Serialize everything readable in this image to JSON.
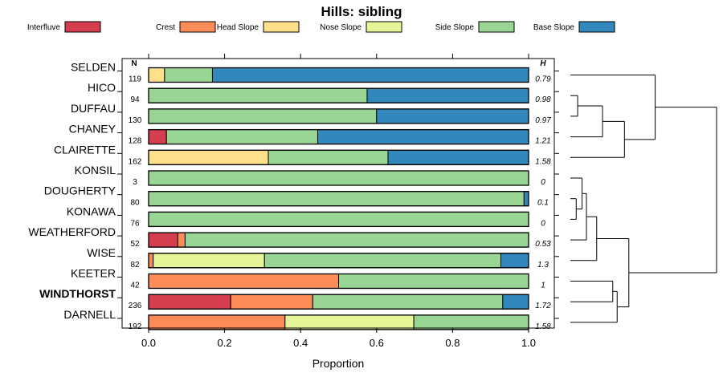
{
  "chart_data": {
    "type": "bar",
    "stacked": true,
    "orientation": "horizontal",
    "title": "Hills: sibling",
    "xlabel": "Proportion",
    "ylabel": "",
    "xlim": [
      0,
      1
    ],
    "x_ticks": [
      "0.0",
      "0.2",
      "0.4",
      "0.6",
      "0.8",
      "1.0"
    ],
    "n_header": "N",
    "h_header": "H",
    "legend": [
      {
        "name": "Interfluve",
        "color": "#d53e4f"
      },
      {
        "name": "Crest",
        "color": "#fc8d59"
      },
      {
        "name": "Head Slope",
        "color": "#fee08b"
      },
      {
        "name": "Nose Slope",
        "color": "#e6f598"
      },
      {
        "name": "Side Slope",
        "color": "#99d594"
      },
      {
        "name": "Base Slope",
        "color": "#3288bd"
      }
    ],
    "categories": [
      "SELDEN",
      "HICO",
      "DUFFAU",
      "CHANEY",
      "CLAIRETTE",
      "KONSIL",
      "DOUGHERTY",
      "KONAWA",
      "WEATHERFORD",
      "WISE",
      "KEETER",
      "WINDTHORST",
      "DARNELL"
    ],
    "highlight": "WINDTHORST",
    "n": [
      "119",
      "94",
      "130",
      "128",
      "162",
      "3",
      "80",
      "76",
      "52",
      "82",
      "42",
      "236",
      "192"
    ],
    "h": [
      "0.79",
      "0.98",
      "0.97",
      "1.21",
      "1.58",
      "0",
      "0.1",
      "0",
      "0.53",
      "1.3",
      "1",
      "1.72",
      "1.58"
    ],
    "series": [
      {
        "name": "Interfluve",
        "values": [
          0,
          0,
          0,
          0.047,
          0,
          0,
          0,
          0,
          0.077,
          0,
          0,
          0.216,
          0
        ]
      },
      {
        "name": "Crest",
        "values": [
          0,
          0,
          0,
          0,
          0,
          0,
          0,
          0,
          0.019,
          0.012,
          0.5,
          0.216,
          0.359
        ]
      },
      {
        "name": "Head Slope",
        "values": [
          0.042,
          0,
          0,
          0,
          0.315,
          0,
          0,
          0,
          0,
          0,
          0,
          0,
          0
        ]
      },
      {
        "name": "Nose Slope",
        "values": [
          0,
          0,
          0,
          0,
          0,
          0,
          0,
          0,
          0,
          0.293,
          0,
          0,
          0.339
        ]
      },
      {
        "name": "Side Slope",
        "values": [
          0.126,
          0.575,
          0.6,
          0.398,
          0.315,
          1,
          0.988,
          1,
          0.904,
          0.622,
          0.5,
          0.5,
          0.302
        ]
      },
      {
        "name": "Base Slope",
        "values": [
          0.832,
          0.425,
          0.4,
          0.555,
          0.37,
          0,
          0.012,
          0,
          0,
          0.073,
          0,
          0.068,
          0
        ]
      }
    ],
    "dendrogram": [
      {
        "left": 12,
        "right": 11,
        "height": 0.22
      },
      {
        "left": 10,
        "right": 0,
        "height": 0.37
      },
      {
        "left": 9,
        "right": 1,
        "height": 0.58
      },
      {
        "left": 7,
        "right": 5,
        "height": 0.05
      },
      {
        "left": 6,
        "right": 3,
        "height": 0.08
      },
      {
        "left": 4,
        "right": 8,
        "height": 0.09
      },
      {
        "left": 3,
        "right": 2,
        "height": 0.11
      },
      {
        "left": 2,
        "right": 7,
        "height": 0.18
      },
      {
        "left": 1,
        "right": 5,
        "height": 0.32
      },
      {
        "left": 6,
        "right": 4,
        "height": 0.4
      },
      {
        "left": 8,
        "right": 0,
        "height": 0.44
      },
      {
        "left": 11,
        "right": 10,
        "height": 1.0
      }
    ]
  }
}
